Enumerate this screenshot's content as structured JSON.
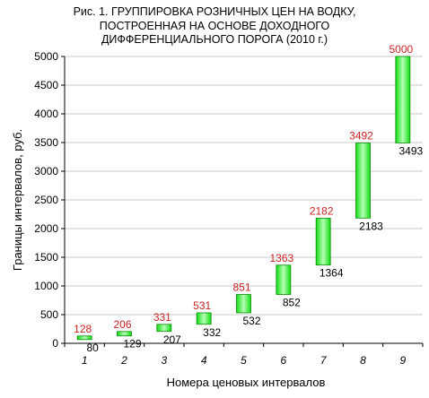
{
  "title": {
    "line1": "Рис. 1. ГРУППИРОВКА РОЗНИЧНЫХ ЦЕН НА ВОДКУ,",
    "line2": "ПОСТРОЕННАЯ НА ОСНОВЕ ДОХОДНОГО",
    "line3": "ДИФФЕРЕНЦИАЛЬНОГО ПОРОГА (2010 г.)"
  },
  "chart_data": {
    "type": "floating-bar",
    "categories": [
      "1",
      "2",
      "3",
      "4",
      "5",
      "6",
      "7",
      "8",
      "9"
    ],
    "lower": [
      80,
      129,
      207,
      332,
      532,
      852,
      1364,
      2183,
      3493
    ],
    "upper": [
      128,
      206,
      331,
      531,
      851,
      1363,
      2182,
      3492,
      5000
    ],
    "xlabel": "Номера ценовых интервалов",
    "ylabel": "Границы интервалов, руб.",
    "ylim": [
      0,
      5000
    ],
    "yticks": [
      "0",
      "500",
      "1000",
      "1500",
      "2000",
      "2500",
      "3000",
      "3500",
      "4000",
      "4500",
      "5000"
    ],
    "grid": true,
    "colors": {
      "bar_fill": "#11dd11",
      "bar_highlight": "#b6ffb6",
      "bar_edge": "#0a8a0a",
      "upper_label": "#cc2222",
      "lower_label": "#000000",
      "grid": "#c8c8c8"
    }
  }
}
